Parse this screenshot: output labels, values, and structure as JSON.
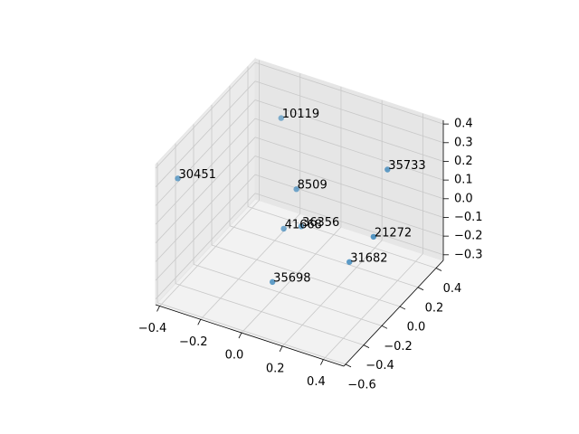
{
  "chart_data": {
    "type": "scatter3d",
    "x": [
      -0.4,
      -0.16,
      0.32,
      -0.05,
      0.0,
      -0.09,
      0.34,
      0.24,
      -0.03
    ],
    "y": [
      -0.42,
      0.18,
      0.27,
      0.1,
      0.04,
      0.05,
      0.07,
      0.03,
      -0.21
    ],
    "z": [
      0.25,
      0.35,
      0.2,
      0.05,
      -0.1,
      -0.15,
      -0.05,
      -0.2,
      -0.28
    ],
    "labels": [
      "30451",
      "10119",
      "35733",
      "8509",
      "36356",
      "41668",
      "21272",
      "31682",
      "35698"
    ],
    "color": "#1f77b4",
    "xlim": [
      -0.42,
      0.5
    ],
    "ylim": [
      -0.62,
      0.48
    ],
    "zlim": [
      -0.33,
      0.42
    ],
    "xticks": [
      {
        "value": -0.4,
        "label": "−0.4"
      },
      {
        "value": -0.2,
        "label": "−0.2"
      },
      {
        "value": 0,
        "label": "0.0"
      },
      0.2,
      0.4
    ],
    "yticks": [
      {
        "value": -0.6,
        "label": "−0.6"
      },
      {
        "value": -0.4,
        "label": "−0.4"
      },
      {
        "value": -0.2,
        "label": "−0.2"
      },
      {
        "value": 0,
        "label": "0.0"
      },
      0.2,
      0.4
    ],
    "zticks": [
      {
        "value": -0.3,
        "label": "−0.3"
      },
      {
        "value": -0.2,
        "label": "−0.2"
      },
      {
        "value": -0.1,
        "label": "−0.1"
      },
      {
        "value": 0,
        "label": "0.0"
      },
      0.1,
      0.2,
      0.3,
      0.4
    ],
    "grid": true
  }
}
